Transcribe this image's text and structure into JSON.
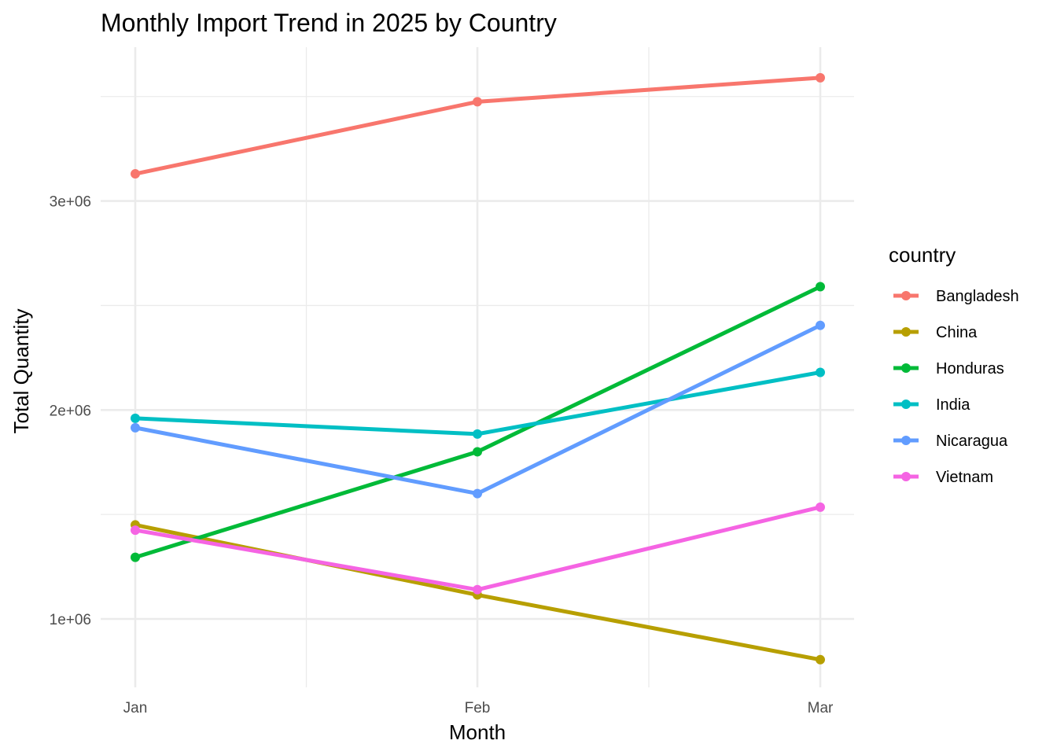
{
  "chart_data": {
    "type": "line",
    "title": "Monthly Import Trend in 2025 by Country",
    "xlabel": "Month",
    "ylabel": "Total Quantity",
    "categories": [
      "Jan",
      "Feb",
      "Mar"
    ],
    "yticks": [
      1000000,
      2000000,
      3000000
    ],
    "ytick_labels": [
      "1e+06",
      "2e+06",
      "3e+06"
    ],
    "ylim": [
      670000,
      3700000
    ],
    "grid": true,
    "legend": {
      "title": "country",
      "position": "right"
    },
    "series": [
      {
        "name": "Bangladesh",
        "color": "#F8766D",
        "values": [
          3130000,
          3475000,
          3590000
        ]
      },
      {
        "name": "China",
        "color": "#B79F00",
        "values": [
          1450000,
          1115000,
          805000
        ]
      },
      {
        "name": "Honduras",
        "color": "#00BA38",
        "values": [
          1295000,
          1800000,
          2590000
        ]
      },
      {
        "name": "India",
        "color": "#00BFC4",
        "values": [
          1960000,
          1885000,
          2180000
        ]
      },
      {
        "name": "Nicaragua",
        "color": "#619CFF",
        "values": [
          1915000,
          1600000,
          2405000
        ]
      },
      {
        "name": "Vietnam",
        "color": "#F564E3",
        "values": [
          1425000,
          1140000,
          1535000
        ]
      }
    ]
  }
}
